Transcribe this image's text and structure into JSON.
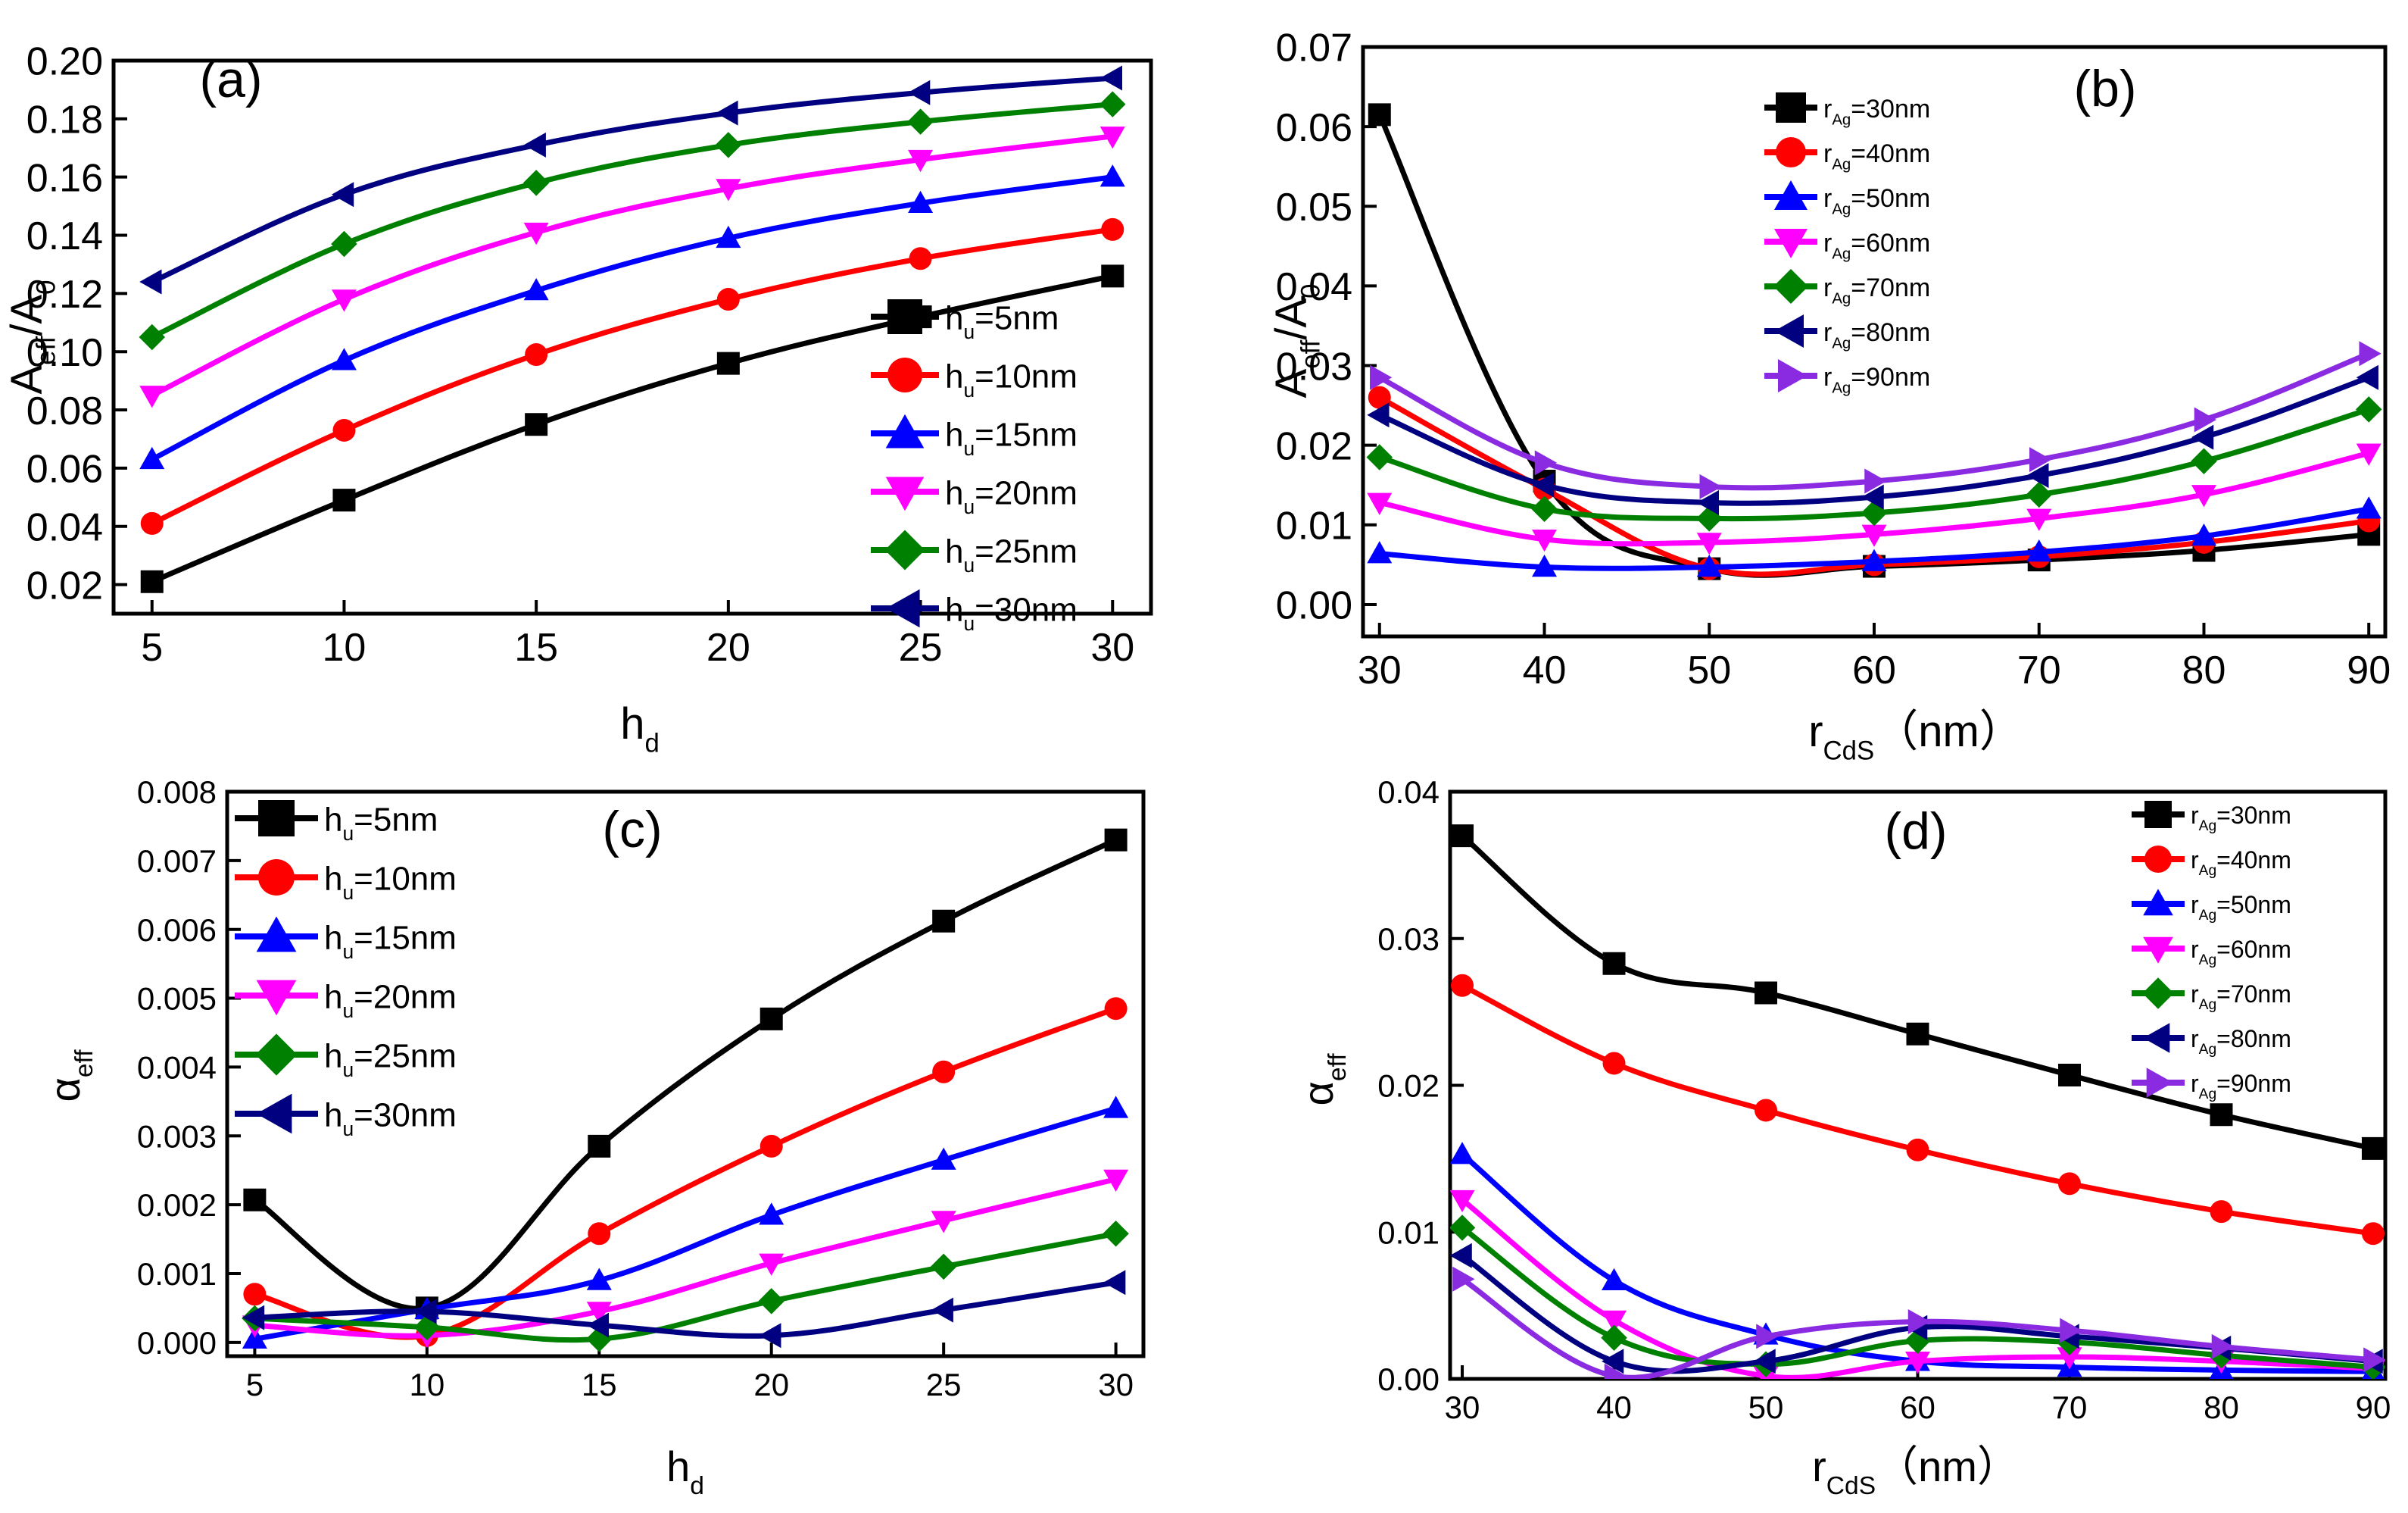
{
  "chart_data": [
    {
      "panel": "(a)",
      "type": "line",
      "xlabel": "h",
      "xlabel_sub": "d",
      "ylabel": "A",
      "ylabel_sub": "eff",
      "ylabel_mid": "/A",
      "ylabel_sub2": "0",
      "xlim": [
        4,
        31
      ],
      "ylim": [
        0.01,
        0.2
      ],
      "xticks": [
        5,
        10,
        15,
        20,
        25,
        30
      ],
      "xtick_labels": [
        "5",
        "10",
        "15",
        "20",
        "25",
        "30"
      ],
      "yticks": [
        0.02,
        0.04,
        0.06,
        0.08,
        0.1,
        0.12,
        0.14,
        0.16,
        0.18,
        0.2
      ],
      "ytick_labels": [
        "0.02",
        "0.04",
        "0.06",
        "0.08",
        "0.10",
        "0.12",
        "0.14",
        "0.16",
        "0.18",
        "0.20"
      ],
      "legend_position": "bottom-right",
      "x": [
        5,
        10,
        15,
        20,
        25,
        30
      ],
      "series": [
        {
          "name": "h",
          "sub": "u",
          "suffix": "=5nm",
          "color": "#000000",
          "marker": "square",
          "values": [
            0.021,
            0.049,
            0.075,
            0.096,
            0.112,
            0.126
          ]
        },
        {
          "name": "h",
          "sub": "u",
          "suffix": "=10nm",
          "color": "#ff0000",
          "marker": "circle",
          "values": [
            0.041,
            0.073,
            0.099,
            0.118,
            0.132,
            0.142
          ]
        },
        {
          "name": "h",
          "sub": "u",
          "suffix": "=15nm",
          "color": "#0000ff",
          "marker": "triangle-up",
          "values": [
            0.063,
            0.097,
            0.121,
            0.139,
            0.151,
            0.16
          ]
        },
        {
          "name": "h",
          "sub": "u",
          "suffix": "=20nm",
          "color": "#ff00ff",
          "marker": "triangle-down",
          "values": [
            0.085,
            0.118,
            0.141,
            0.156,
            0.166,
            0.174
          ]
        },
        {
          "name": "h",
          "sub": "u",
          "suffix": "=25nm",
          "color": "#008000",
          "marker": "diamond",
          "values": [
            0.105,
            0.137,
            0.158,
            0.171,
            0.179,
            0.185
          ]
        },
        {
          "name": "h",
          "sub": "u",
          "suffix": "=30nm",
          "color": "#000080",
          "marker": "triangle-left",
          "values": [
            0.124,
            0.154,
            0.171,
            0.182,
            0.189,
            0.194
          ]
        }
      ]
    },
    {
      "panel": "(b)",
      "type": "line",
      "xlabel": "r",
      "xlabel_sub": "CdS",
      "xlabel_suffix": "（nm）",
      "ylabel": "A",
      "ylabel_sub": "eff",
      "ylabel_mid": "/A",
      "ylabel_sub2": "0",
      "xlim": [
        29,
        91
      ],
      "ylim": [
        -0.004,
        0.07
      ],
      "xticks": [
        30,
        40,
        50,
        60,
        70,
        80,
        90
      ],
      "xtick_labels": [
        "30",
        "40",
        "50",
        "60",
        "70",
        "80",
        "90"
      ],
      "yticks": [
        0.0,
        0.01,
        0.02,
        0.03,
        0.04,
        0.05,
        0.06,
        0.07
      ],
      "ytick_labels": [
        "0.00",
        "0.01",
        "0.02",
        "0.03",
        "0.04",
        "0.05",
        "0.06",
        "0.07"
      ],
      "legend_position": "top-left",
      "x": [
        30,
        40,
        50,
        60,
        70,
        80,
        90
      ],
      "series": [
        {
          "name": "r",
          "sub": "Ag",
          "suffix": "=30nm",
          "color": "#000000",
          "marker": "square",
          "values": [
            0.0615,
            0.0155,
            0.0045,
            0.0048,
            0.0056,
            0.0068,
            0.0088
          ]
        },
        {
          "name": "r",
          "sub": "Ag",
          "suffix": "=40nm",
          "color": "#ff0000",
          "marker": "circle",
          "values": [
            0.026,
            0.0145,
            0.0045,
            0.005,
            0.006,
            0.0078,
            0.0105
          ]
        },
        {
          "name": "r",
          "sub": "Ag",
          "suffix": "=50nm",
          "color": "#0000ff",
          "marker": "triangle-up",
          "values": [
            0.0064,
            0.0047,
            0.0047,
            0.0054,
            0.0066,
            0.0086,
            0.012
          ]
        },
        {
          "name": "r",
          "sub": "Ag",
          "suffix": "=60nm",
          "color": "#ff00ff",
          "marker": "triangle-down",
          "values": [
            0.0128,
            0.0082,
            0.0078,
            0.0088,
            0.0108,
            0.0138,
            0.019
          ]
        },
        {
          "name": "r",
          "sub": "Ag",
          "suffix": "=70nm",
          "color": "#008000",
          "marker": "diamond",
          "values": [
            0.0185,
            0.012,
            0.0108,
            0.0115,
            0.0138,
            0.018,
            0.0245
          ]
        },
        {
          "name": "r",
          "sub": "Ag",
          "suffix": "=80nm",
          "color": "#000080",
          "marker": "triangle-left",
          "values": [
            0.0238,
            0.015,
            0.0128,
            0.0135,
            0.0162,
            0.021,
            0.0285
          ]
        },
        {
          "name": "r",
          "sub": "Ag",
          "suffix": "=90nm",
          "color": "#8a2be2",
          "marker": "triangle-right",
          "values": [
            0.0285,
            0.0178,
            0.0148,
            0.0155,
            0.0182,
            0.0232,
            0.0315
          ]
        }
      ]
    },
    {
      "panel": "(c)",
      "type": "line",
      "xlabel": "h",
      "xlabel_sub": "d",
      "ylabel": "α",
      "ylabel_sub": "eff",
      "xlim": [
        4.2,
        30.8
      ],
      "ylim": [
        -0.0002,
        0.008
      ],
      "xticks": [
        5,
        10,
        15,
        20,
        25,
        30
      ],
      "xtick_labels": [
        "5",
        "10",
        "15",
        "20",
        "25",
        "30"
      ],
      "yticks": [
        0.0,
        0.001,
        0.002,
        0.003,
        0.004,
        0.005,
        0.006,
        0.007,
        0.008
      ],
      "ytick_labels": [
        "0.000",
        "0.001",
        "0.002",
        "0.003",
        "0.004",
        "0.005",
        "0.006",
        "0.007",
        "0.008"
      ],
      "legend_position": "top-left",
      "x": [
        5,
        10,
        15,
        20,
        25,
        30
      ],
      "series": [
        {
          "name": "h",
          "sub": "u",
          "suffix": "=5nm",
          "color": "#000000",
          "marker": "square",
          "values": [
            0.00207,
            0.0005,
            0.00285,
            0.0047,
            0.00612,
            0.0073
          ]
        },
        {
          "name": "h",
          "sub": "u",
          "suffix": "=10nm",
          "color": "#ff0000",
          "marker": "circle",
          "values": [
            0.0007,
            0.0001,
            0.00158,
            0.00285,
            0.00393,
            0.00485
          ]
        },
        {
          "name": "h",
          "sub": "u",
          "suffix": "=15nm",
          "color": "#0000ff",
          "marker": "triangle-up",
          "values": [
            5e-05,
            0.00048,
            0.0009,
            0.00185,
            0.00265,
            0.0034
          ]
        },
        {
          "name": "h",
          "sub": "u",
          "suffix": "=20nm",
          "color": "#ff00ff",
          "marker": "triangle-down",
          "values": [
            0.00025,
            0.0001,
            0.00045,
            0.00115,
            0.00177,
            0.00237
          ]
        },
        {
          "name": "h",
          "sub": "u",
          "suffix": "=25nm",
          "color": "#008000",
          "marker": "diamond",
          "values": [
            0.00035,
            0.00022,
            5e-05,
            0.0006,
            0.0011,
            0.00158
          ]
        },
        {
          "name": "h",
          "sub": "u",
          "suffix": "=30nm",
          "color": "#000080",
          "marker": "triangle-left",
          "values": [
            0.00036,
            0.00045,
            0.00025,
            0.0001,
            0.00047,
            0.00087
          ]
        }
      ]
    },
    {
      "panel": "(d)",
      "type": "line",
      "xlabel": "r",
      "xlabel_sub": "CdS",
      "xlabel_suffix": "（nm）",
      "ylabel": "α",
      "ylabel_sub": "eff",
      "xlim": [
        29.2,
        90.8
      ],
      "ylim": [
        0.0,
        0.04
      ],
      "xticks": [
        30,
        40,
        50,
        60,
        70,
        80,
        90
      ],
      "xtick_labels": [
        "30",
        "40",
        "50",
        "60",
        "70",
        "80",
        "90"
      ],
      "yticks": [
        0.0,
        0.01,
        0.02,
        0.03,
        0.04
      ],
      "ytick_labels": [
        "0.00",
        "0.01",
        "0.02",
        "0.03",
        "0.04"
      ],
      "legend_position": "top-right",
      "x": [
        30,
        40,
        50,
        60,
        70,
        80,
        90
      ],
      "series": [
        {
          "name": "r",
          "sub": "Ag",
          "suffix": "=30nm",
          "color": "#000000",
          "marker": "square",
          "values": [
            0.037,
            0.0283,
            0.0263,
            0.0235,
            0.0207,
            0.018,
            0.0157
          ]
        },
        {
          "name": "r",
          "sub": "Ag",
          "suffix": "=40nm",
          "color": "#ff0000",
          "marker": "circle",
          "values": [
            0.0268,
            0.0215,
            0.0183,
            0.0156,
            0.0133,
            0.0114,
            0.0099
          ]
        },
        {
          "name": "r",
          "sub": "Ag",
          "suffix": "=50nm",
          "color": "#0000ff",
          "marker": "triangle-up",
          "values": [
            0.0153,
            0.0067,
            0.003,
            0.0012,
            0.0008,
            0.0006,
            0.0005
          ]
        },
        {
          "name": "r",
          "sub": "Ag",
          "suffix": "=60nm",
          "color": "#ff00ff",
          "marker": "triangle-down",
          "values": [
            0.0122,
            0.004,
            0.0002,
            0.0012,
            0.0015,
            0.0012,
            0.0007
          ]
        },
        {
          "name": "r",
          "sub": "Ag",
          "suffix": "=70nm",
          "color": "#008000",
          "marker": "diamond",
          "values": [
            0.0103,
            0.0028,
            0.001,
            0.0026,
            0.0025,
            0.0016,
            0.0008
          ]
        },
        {
          "name": "r",
          "sub": "Ag",
          "suffix": "=80nm",
          "color": "#000080",
          "marker": "triangle-left",
          "values": [
            0.0084,
            0.0012,
            0.0012,
            0.0035,
            0.0029,
            0.0021,
            0.0012
          ]
        },
        {
          "name": "r",
          "sub": "Ag",
          "suffix": "=90nm",
          "color": "#8a2be2",
          "marker": "triangle-right",
          "values": [
            0.0068,
            0.0002,
            0.0029,
            0.0039,
            0.0033,
            0.0022,
            0.0013
          ]
        }
      ]
    }
  ]
}
